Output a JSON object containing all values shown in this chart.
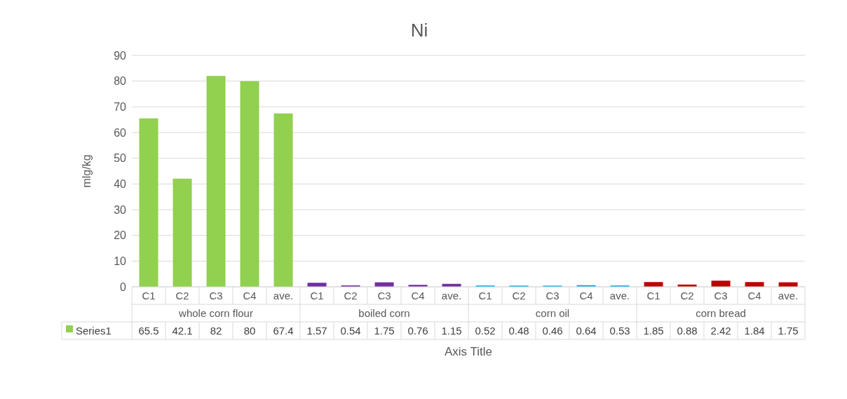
{
  "chart_data": {
    "type": "bar",
    "title": "Ni",
    "xlabel": "Axis Title",
    "ylabel": "mlg/kg",
    "categories": [
      "C1",
      "C2",
      "C3",
      "C4",
      "ave.",
      "C1",
      "C2",
      "C3",
      "C4",
      "ave.",
      "C1",
      "C2",
      "C3",
      "C4",
      "ave.",
      "C1",
      "C2",
      "C3",
      "C4",
      "ave."
    ],
    "series": [
      {
        "name": "Series1",
        "color": "#92d050",
        "values": [
          65.5,
          42.1,
          82,
          80,
          67.4,
          1.57,
          0.54,
          1.75,
          0.76,
          1.15,
          0.52,
          0.48,
          0.46,
          0.64,
          0.53,
          1.85,
          0.88,
          2.42,
          1.84,
          1.75
        ],
        "colors": [
          "#92d050",
          "#92d050",
          "#92d050",
          "#92d050",
          "#92d050",
          "#7030a0",
          "#7030a0",
          "#7030a0",
          "#7030a0",
          "#7030a0",
          "#00b0f0",
          "#00b0f0",
          "#00b0f0",
          "#00b0f0",
          "#00b0f0",
          "#c00000",
          "#c00000",
          "#c00000",
          "#c00000",
          "#c00000"
        ]
      }
    ],
    "annotations": [
      "whole corn flour",
      "boiled corn",
      "corn oil",
      "corn bread"
    ],
    "ylim": [
      0,
      90
    ],
    "yticks": [
      0,
      10,
      20,
      30,
      40,
      50,
      60,
      70,
      80,
      90
    ],
    "grid": "y",
    "legend": "bottom",
    "data_labels": true
  }
}
